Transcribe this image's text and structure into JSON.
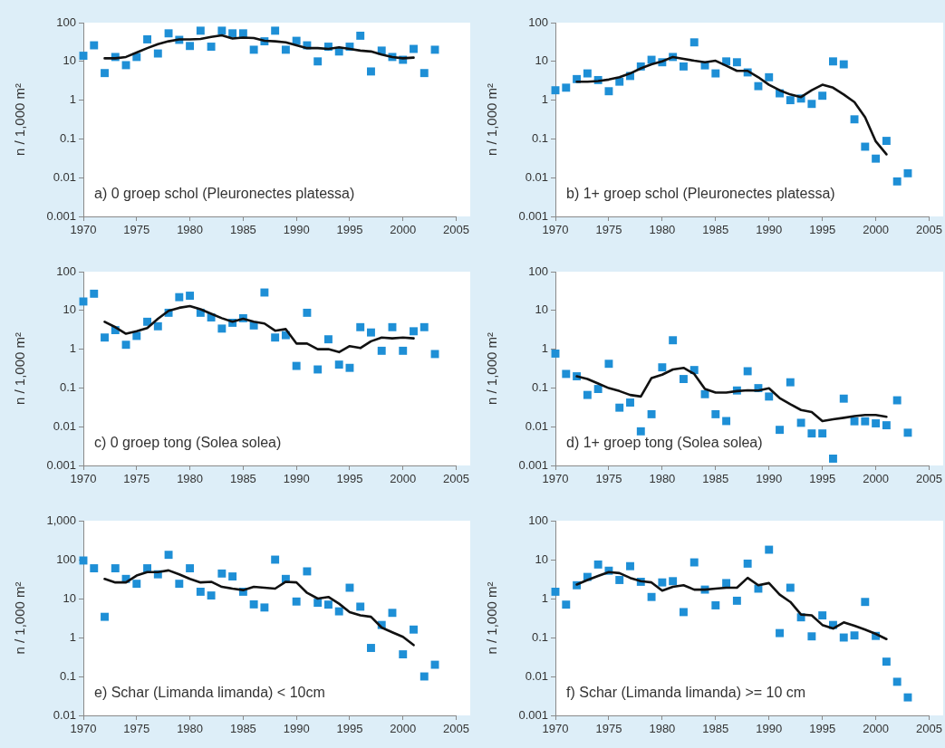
{
  "chart_data": [
    {
      "type": "scatter",
      "title": "a) 0 groep schol (Pleuronectes platessa)",
      "ylabel": "n / 1,000 m²",
      "log": true,
      "xlim": [
        1970,
        2005
      ],
      "xticks": [
        1970,
        1975,
        1980,
        1985,
        1990,
        1995,
        2000,
        2005
      ],
      "ylim": [
        0.001,
        100
      ],
      "yticks": [
        0.001,
        0.01,
        0.1,
        1,
        10,
        100
      ],
      "series": [
        {
          "type": "scatter",
          "color": "#1e8fd6",
          "marker": "square",
          "x": [
            1970,
            1971,
            1972,
            1973,
            1974,
            1975,
            1976,
            1977,
            1978,
            1979,
            1980,
            1981,
            1982,
            1983,
            1984,
            1985,
            1986,
            1987,
            1988,
            1989,
            1990,
            1991,
            1992,
            1993,
            1994,
            1995,
            1996,
            1997,
            1998,
            1999,
            2000,
            2001,
            2002,
            2003
          ],
          "values": [
            14,
            26,
            5,
            13,
            8,
            13,
            37,
            16,
            53,
            36,
            25,
            62,
            24,
            62,
            53,
            53,
            20,
            33,
            62,
            20,
            34,
            26,
            10,
            24,
            18,
            24,
            46,
            5.5,
            19,
            13,
            11,
            21,
            5,
            20
          ]
        },
        {
          "type": "line",
          "color": "#111111",
          "marker": "none",
          "x": [
            1972,
            1973,
            1974,
            1975,
            1976,
            1977,
            1978,
            1979,
            1980,
            1981,
            1982,
            1983,
            1984,
            1985,
            1986,
            1987,
            1988,
            1989,
            1990,
            1991,
            1992,
            1993,
            1994,
            1995,
            1996,
            1997,
            1998,
            1999,
            2000,
            2001
          ],
          "values": [
            12,
            12,
            13,
            17,
            22,
            28,
            33,
            37,
            37,
            38,
            43,
            47,
            39,
            41,
            40,
            34,
            33,
            31,
            26,
            22,
            22,
            21,
            23,
            21,
            19,
            18,
            15,
            13,
            12,
            12.5
          ]
        }
      ]
    },
    {
      "type": "scatter",
      "title": "b) 1+ groep schol (Pleuronectes platessa)",
      "ylabel": "n / 1,000 m²",
      "log": true,
      "xlim": [
        1970,
        2005
      ],
      "xticks": [
        1970,
        1975,
        1980,
        1985,
        1990,
        1995,
        2000,
        2005
      ],
      "ylim": [
        0.001,
        100
      ],
      "yticks": [
        0.001,
        0.01,
        0.1,
        1,
        10,
        100
      ],
      "series": [
        {
          "type": "scatter",
          "color": "#1e8fd6",
          "marker": "square",
          "x": [
            1970,
            1971,
            1972,
            1973,
            1974,
            1975,
            1976,
            1977,
            1978,
            1979,
            1980,
            1981,
            1982,
            1983,
            1984,
            1985,
            1986,
            1987,
            1988,
            1989,
            1990,
            1991,
            1992,
            1993,
            1994,
            1995,
            1996,
            1997,
            1998,
            1999,
            2000,
            2001,
            2002,
            2003
          ],
          "values": [
            1.8,
            2.1,
            3.5,
            4.9,
            3.3,
            1.7,
            3.0,
            4.2,
            7.4,
            11,
            9.5,
            13,
            7.4,
            31,
            7.9,
            4.9,
            10,
            9.5,
            5.2,
            2.3,
            3.9,
            1.5,
            1.0,
            1.1,
            0.8,
            1.3,
            10,
            8.4,
            0.32,
            0.063,
            0.031,
            0.089,
            0.008,
            0.013
          ]
        },
        {
          "type": "line",
          "color": "#111111",
          "marker": "none",
          "x": [
            1972,
            1973,
            1974,
            1975,
            1976,
            1977,
            1978,
            1979,
            1980,
            1981,
            1982,
            1983,
            1984,
            1985,
            1986,
            1987,
            1988,
            1989,
            1990,
            1991,
            1992,
            1993,
            1994,
            1995,
            1996,
            1997,
            1998,
            1999,
            2000,
            2001
          ],
          "values": [
            3.0,
            3.0,
            3.1,
            3.4,
            3.9,
            4.9,
            6.6,
            8.4,
            10,
            13,
            11.6,
            10.4,
            9.5,
            10.4,
            7.7,
            5.7,
            5.7,
            3.9,
            2.5,
            1.8,
            1.4,
            1.2,
            1.8,
            2.5,
            2.1,
            1.4,
            0.89,
            0.36,
            0.086,
            0.04
          ]
        }
      ]
    },
    {
      "type": "scatter",
      "title": "c) 0 groep tong (Solea solea)",
      "ylabel": "n / 1,000 m²",
      "log": true,
      "xlim": [
        1970,
        2005
      ],
      "xticks": [
        1970,
        1975,
        1980,
        1985,
        1990,
        1995,
        2000,
        2005
      ],
      "ylim": [
        0.001,
        100
      ],
      "yticks": [
        0.001,
        0.01,
        0.1,
        1,
        10,
        100
      ],
      "series": [
        {
          "type": "scatter",
          "color": "#1e8fd6",
          "marker": "square",
          "x": [
            1970,
            1971,
            1972,
            1973,
            1974,
            1975,
            1976,
            1977,
            1978,
            1979,
            1980,
            1981,
            1982,
            1983,
            1984,
            1985,
            1986,
            1987,
            1988,
            1989,
            1990,
            1991,
            1992,
            1993,
            1994,
            1995,
            1996,
            1997,
            1998,
            1999,
            2000,
            2001,
            2002,
            2003
          ],
          "values": [
            17,
            27,
            2.0,
            3.1,
            1.3,
            2.2,
            5.1,
            3.9,
            8.7,
            22,
            24,
            8.7,
            6.6,
            3.4,
            4.8,
            6.3,
            4.1,
            29,
            2.0,
            2.3,
            0.37,
            8.7,
            0.3,
            1.8,
            0.4,
            0.33,
            3.7,
            2.7,
            0.91,
            3.7,
            0.91,
            2.9,
            3.7,
            0.75
          ]
        },
        {
          "type": "line",
          "color": "#111111",
          "marker": "none",
          "x": [
            1972,
            1973,
            1974,
            1975,
            1976,
            1977,
            1978,
            1979,
            1980,
            1981,
            1982,
            1983,
            1984,
            1985,
            1986,
            1987,
            1988,
            1989,
            1990,
            1991,
            1992,
            1993,
            1994,
            1995,
            1996,
            1997,
            1998,
            1999,
            2000,
            2001
          ],
          "values": [
            5.1,
            3.7,
            2.5,
            2.9,
            3.5,
            6.1,
            9.8,
            11.7,
            12.9,
            10.7,
            8.2,
            6.3,
            5.1,
            6.1,
            5.1,
            4.6,
            3.0,
            3.3,
            1.4,
            1.4,
            1.0,
            1.0,
            0.84,
            1.2,
            1.07,
            1.6,
            2.0,
            1.9,
            2.0,
            1.9
          ]
        }
      ]
    },
    {
      "type": "scatter",
      "title": "d) 1+ groep tong (Solea solea)",
      "ylabel": "n / 1,000 m²",
      "log": true,
      "xlim": [
        1970,
        2005
      ],
      "xticks": [
        1970,
        1975,
        1980,
        1985,
        1990,
        1995,
        2000,
        2005
      ],
      "ylim": [
        0.001,
        100
      ],
      "yticks": [
        0.001,
        0.01,
        0.1,
        1,
        10,
        100
      ],
      "series": [
        {
          "type": "scatter",
          "color": "#1e8fd6",
          "marker": "square",
          "x": [
            1970,
            1971,
            1972,
            1973,
            1974,
            1975,
            1976,
            1977,
            1978,
            1979,
            1980,
            1981,
            1982,
            1983,
            1984,
            1985,
            1986,
            1987,
            1988,
            1989,
            1990,
            1991,
            1992,
            1993,
            1994,
            1995,
            1996,
            1997,
            1998,
            1999,
            2000,
            2001,
            2002,
            2003
          ],
          "values": [
            0.77,
            0.23,
            0.2,
            0.066,
            0.094,
            0.42,
            0.031,
            0.042,
            0.0076,
            0.021,
            0.34,
            1.7,
            0.17,
            0.29,
            0.069,
            0.021,
            0.014,
            0.086,
            0.27,
            0.099,
            0.06,
            0.0083,
            0.14,
            0.0126,
            0.0067,
            0.0067,
            0.0015,
            0.053,
            0.0138,
            0.0138,
            0.0122,
            0.0109,
            0.048,
            0.007
          ]
        },
        {
          "type": "line",
          "color": "#111111",
          "marker": "none",
          "x": [
            1972,
            1973,
            1974,
            1975,
            1976,
            1977,
            1978,
            1979,
            1980,
            1981,
            1982,
            1983,
            1984,
            1985,
            1986,
            1987,
            1988,
            1989,
            1990,
            1991,
            1992,
            1993,
            1994,
            1995,
            1996,
            1997,
            1998,
            1999,
            2000,
            2001
          ],
          "values": [
            0.2,
            0.17,
            0.13,
            0.099,
            0.083,
            0.066,
            0.06,
            0.18,
            0.22,
            0.3,
            0.33,
            0.23,
            0.094,
            0.076,
            0.076,
            0.083,
            0.087,
            0.086,
            0.098,
            0.055,
            0.038,
            0.027,
            0.024,
            0.014,
            0.0156,
            0.017,
            0.0187,
            0.02,
            0.02,
            0.018
          ]
        }
      ]
    },
    {
      "type": "scatter",
      "title": "e) Schar (Limanda limanda) < 10cm",
      "ylabel": "n / 1,000 m²",
      "log": true,
      "xlim": [
        1970,
        2005
      ],
      "xticks": [
        1970,
        1975,
        1980,
        1985,
        1990,
        1995,
        2000,
        2005
      ],
      "ylim": [
        0.01,
        1000
      ],
      "yticks": [
        0.01,
        0.1,
        1,
        10,
        100,
        {
          "value": 1000,
          "label": "1,000"
        }
      ],
      "series": [
        {
          "type": "scatter",
          "color": "#1e8fd6",
          "marker": "square",
          "x": [
            1970,
            1971,
            1972,
            1973,
            1974,
            1975,
            1976,
            1977,
            1978,
            1979,
            1980,
            1981,
            1982,
            1983,
            1984,
            1985,
            1986,
            1987,
            1988,
            1989,
            1990,
            1991,
            1992,
            1993,
            1994,
            1995,
            1996,
            1997,
            1998,
            1999,
            2000,
            2001,
            2002,
            2003
          ],
          "values": [
            95,
            60,
            3.4,
            60,
            32,
            24,
            60,
            42,
            133,
            24,
            60,
            15,
            12,
            44,
            37,
            15,
            7.1,
            5.9,
            100,
            32,
            8.4,
            50,
            7.8,
            7.0,
            4.7,
            19,
            6.2,
            0.54,
            2.1,
            4.3,
            0.37,
            1.6,
            0.1,
            0.2
          ]
        },
        {
          "type": "line",
          "color": "#111111",
          "marker": "none",
          "x": [
            1972,
            1973,
            1974,
            1975,
            1976,
            1977,
            1978,
            1979,
            1980,
            1981,
            1982,
            1983,
            1984,
            1985,
            1986,
            1987,
            1988,
            1989,
            1990,
            1991,
            1992,
            1993,
            1994,
            1995,
            1996,
            1997,
            1998,
            1999,
            2000,
            2001
          ],
          "values": [
            32,
            26,
            26,
            39,
            48,
            48,
            53,
            42,
            32,
            26,
            27,
            20,
            18,
            16.5,
            20,
            19,
            18,
            27,
            26,
            14,
            10,
            11,
            7.4,
            4.5,
            3.7,
            3.4,
            1.8,
            1.36,
            1.04,
            0.64
          ]
        }
      ]
    },
    {
      "type": "scatter",
      "title": "f) Schar (Limanda limanda) >= 10 cm",
      "ylabel": "n / 1,000 m²",
      "log": true,
      "xlim": [
        1970,
        2005
      ],
      "xticks": [
        1970,
        1975,
        1980,
        1985,
        1990,
        1995,
        2000,
        2005
      ],
      "ylim": [
        0.001,
        100
      ],
      "yticks": [
        0.001,
        0.01,
        0.1,
        1,
        10,
        100
      ],
      "series": [
        {
          "type": "scatter",
          "color": "#1e8fd6",
          "marker": "square",
          "x": [
            1970,
            1971,
            1972,
            1973,
            1974,
            1975,
            1976,
            1977,
            1978,
            1979,
            1980,
            1981,
            1982,
            1983,
            1984,
            1985,
            1986,
            1987,
            1988,
            1989,
            1990,
            1991,
            1992,
            1993,
            1994,
            1995,
            1996,
            1997,
            1998,
            1999,
            2000,
            2001,
            2002,
            2003
          ],
          "values": [
            1.5,
            0.7,
            2.2,
            3.6,
            7.5,
            5.2,
            3.0,
            6.8,
            2.7,
            1.1,
            2.6,
            2.8,
            0.45,
            8.5,
            1.7,
            0.67,
            2.5,
            0.88,
            7.9,
            1.8,
            18,
            0.13,
            1.9,
            0.33,
            0.107,
            0.37,
            0.21,
            0.1,
            0.113,
            0.82,
            0.11,
            0.024,
            0.0073,
            0.0029
          ]
        },
        {
          "type": "line",
          "color": "#111111",
          "marker": "none",
          "x": [
            1972,
            1973,
            1974,
            1975,
            1976,
            1977,
            1978,
            1979,
            1980,
            1981,
            1982,
            1983,
            1984,
            1985,
            1986,
            1987,
            1988,
            1989,
            1990,
            1991,
            1992,
            1993,
            1994,
            1995,
            1996,
            1997,
            1998,
            1999,
            2000,
            2001
          ],
          "values": [
            2.3,
            3.0,
            3.8,
            4.8,
            4.5,
            3.4,
            2.8,
            2.6,
            1.6,
            2.0,
            2.2,
            1.7,
            1.7,
            1.8,
            1.9,
            1.9,
            3.4,
            2.2,
            2.5,
            1.26,
            0.82,
            0.39,
            0.37,
            0.21,
            0.17,
            0.245,
            0.2,
            0.16,
            0.124,
            0.091
          ]
        }
      ]
    }
  ]
}
